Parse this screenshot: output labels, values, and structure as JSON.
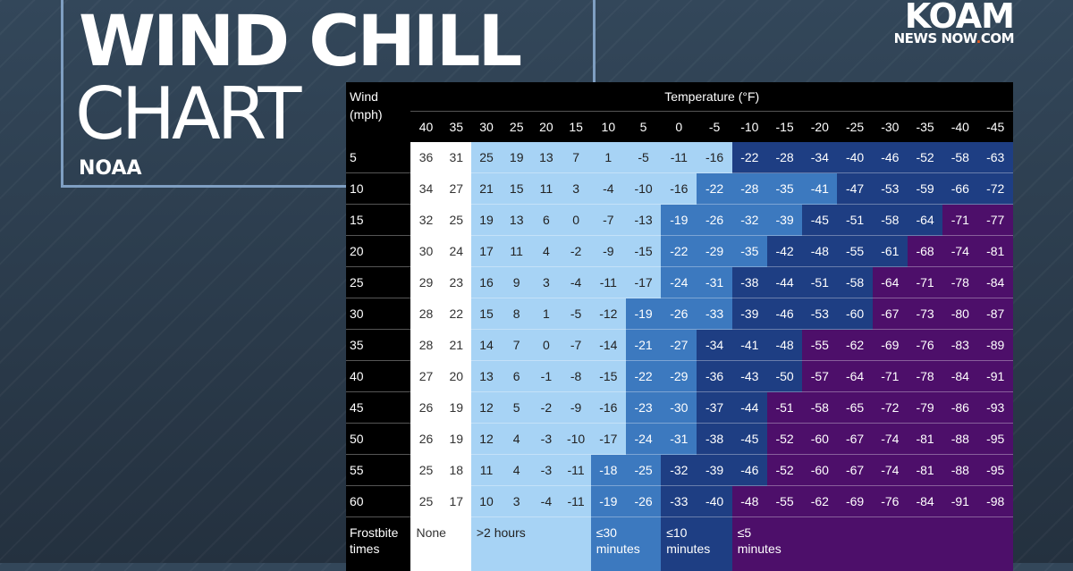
{
  "title": {
    "line1": "WIND CHILL",
    "line2": "CHART",
    "source": "NOAA"
  },
  "logo": {
    "line1": "KOAM",
    "line2_a": "NEWS NOW",
    "line2_dot": ".",
    "line2_b": "COM"
  },
  "table": {
    "corner_label": "Wind\n(mph)",
    "temperature_header": "Temperature (°F)",
    "temperatures": [
      "40",
      "35",
      "30",
      "25",
      "20",
      "15",
      "10",
      "5",
      "0",
      "-5",
      "-10",
      "-15",
      "-20",
      "-25",
      "-30",
      "-35",
      "-40",
      "-45"
    ],
    "rows": [
      {
        "wind": "5",
        "values": [
          "36",
          "31",
          "25",
          "19",
          "13",
          "7",
          "1",
          "-5",
          "-11",
          "-16",
          "-22",
          "-28",
          "-34",
          "-40",
          "-46",
          "-52",
          "-58",
          "-63"
        ],
        "bands": [
          0,
          0,
          1,
          1,
          1,
          1,
          1,
          1,
          1,
          1,
          3,
          3,
          3,
          3,
          3,
          3,
          3,
          3
        ]
      },
      {
        "wind": "10",
        "values": [
          "34",
          "27",
          "21",
          "15",
          "11",
          "3",
          "-4",
          "-10",
          "-16",
          "-22",
          "-28",
          "-35",
          "-41",
          "-47",
          "-53",
          "-59",
          "-66",
          "-72"
        ],
        "bands": [
          0,
          0,
          1,
          1,
          1,
          1,
          1,
          1,
          1,
          2,
          2,
          2,
          2,
          3,
          3,
          3,
          3,
          3
        ]
      },
      {
        "wind": "15",
        "values": [
          "32",
          "25",
          "19",
          "13",
          "6",
          "0",
          "-7",
          "-13",
          "-19",
          "-26",
          "-32",
          "-39",
          "-45",
          "-51",
          "-58",
          "-64",
          "-71",
          "-77"
        ],
        "bands": [
          0,
          0,
          1,
          1,
          1,
          1,
          1,
          1,
          2,
          2,
          2,
          2,
          3,
          3,
          3,
          3,
          4,
          4
        ]
      },
      {
        "wind": "20",
        "values": [
          "30",
          "24",
          "17",
          "11",
          "4",
          "-2",
          "-9",
          "-15",
          "-22",
          "-29",
          "-35",
          "-42",
          "-48",
          "-55",
          "-61",
          "-68",
          "-74",
          "-81"
        ],
        "bands": [
          0,
          0,
          1,
          1,
          1,
          1,
          1,
          1,
          2,
          2,
          2,
          3,
          3,
          3,
          3,
          4,
          4,
          4
        ]
      },
      {
        "wind": "25",
        "values": [
          "29",
          "23",
          "16",
          "9",
          "3",
          "-4",
          "-11",
          "-17",
          "-24",
          "-31",
          "-38",
          "-44",
          "-51",
          "-58",
          "-64",
          "-71",
          "-78",
          "-84"
        ],
        "bands": [
          0,
          0,
          1,
          1,
          1,
          1,
          1,
          1,
          2,
          2,
          3,
          3,
          3,
          3,
          4,
          4,
          4,
          4
        ]
      },
      {
        "wind": "30",
        "values": [
          "28",
          "22",
          "15",
          "8",
          "1",
          "-5",
          "-12",
          "-19",
          "-26",
          "-33",
          "-39",
          "-46",
          "-53",
          "-60",
          "-67",
          "-73",
          "-80",
          "-87"
        ],
        "bands": [
          0,
          0,
          1,
          1,
          1,
          1,
          1,
          2,
          2,
          2,
          3,
          3,
          3,
          3,
          4,
          4,
          4,
          4
        ]
      },
      {
        "wind": "35",
        "values": [
          "28",
          "21",
          "14",
          "7",
          "0",
          "-7",
          "-14",
          "-21",
          "-27",
          "-34",
          "-41",
          "-48",
          "-55",
          "-62",
          "-69",
          "-76",
          "-83",
          "-89"
        ],
        "bands": [
          0,
          0,
          1,
          1,
          1,
          1,
          1,
          2,
          2,
          3,
          3,
          3,
          4,
          4,
          4,
          4,
          4,
          4
        ]
      },
      {
        "wind": "40",
        "values": [
          "27",
          "20",
          "13",
          "6",
          "-1",
          "-8",
          "-15",
          "-22",
          "-29",
          "-36",
          "-43",
          "-50",
          "-57",
          "-64",
          "-71",
          "-78",
          "-84",
          "-91"
        ],
        "bands": [
          0,
          0,
          1,
          1,
          1,
          1,
          1,
          2,
          2,
          3,
          3,
          3,
          4,
          4,
          4,
          4,
          4,
          4
        ]
      },
      {
        "wind": "45",
        "values": [
          "26",
          "19",
          "12",
          "5",
          "-2",
          "-9",
          "-16",
          "-23",
          "-30",
          "-37",
          "-44",
          "-51",
          "-58",
          "-65",
          "-72",
          "-79",
          "-86",
          "-93"
        ],
        "bands": [
          0,
          0,
          1,
          1,
          1,
          1,
          1,
          2,
          2,
          3,
          3,
          4,
          4,
          4,
          4,
          4,
          4,
          4
        ]
      },
      {
        "wind": "50",
        "values": [
          "26",
          "19",
          "12",
          "4",
          "-3",
          "-10",
          "-17",
          "-24",
          "-31",
          "-38",
          "-45",
          "-52",
          "-60",
          "-67",
          "-74",
          "-81",
          "-88",
          "-95"
        ],
        "bands": [
          0,
          0,
          1,
          1,
          1,
          1,
          1,
          2,
          2,
          3,
          3,
          4,
          4,
          4,
          4,
          4,
          4,
          4
        ]
      },
      {
        "wind": "55",
        "values": [
          "25",
          "18",
          "11",
          "4",
          "-3",
          "-11",
          "-18",
          "-25",
          "-32",
          "-39",
          "-46",
          "-52",
          "-60",
          "-67",
          "-74",
          "-81",
          "-88",
          "-95"
        ],
        "bands": [
          0,
          0,
          1,
          1,
          1,
          1,
          2,
          2,
          3,
          3,
          3,
          4,
          4,
          4,
          4,
          4,
          4,
          4
        ]
      },
      {
        "wind": "60",
        "values": [
          "25",
          "17",
          "10",
          "3",
          "-4",
          "-11",
          "-19",
          "-26",
          "-33",
          "-40",
          "-48",
          "-55",
          "-62",
          "-69",
          "-76",
          "-84",
          "-91",
          "-98"
        ],
        "bands": [
          0,
          0,
          1,
          1,
          1,
          1,
          2,
          2,
          3,
          3,
          4,
          4,
          4,
          4,
          4,
          4,
          4,
          4
        ]
      }
    ],
    "frostbite": {
      "label": "Frostbite\ntimes",
      "segments": [
        {
          "text": "None",
          "band": 0,
          "span": 2
        },
        {
          "text": ">2 hours",
          "band": 1,
          "span": 4
        },
        {
          "text": "≤30\nminutes",
          "band": 2,
          "span": 2
        },
        {
          "text": "≤10\nminutes",
          "band": 3,
          "span": 2
        },
        {
          "text": "≤5\nminutes",
          "band": 4,
          "span": 8
        }
      ]
    },
    "band_colors": [
      "#ffffff",
      "#a7d3f5",
      "#3c79bf",
      "#1e3e83",
      "#4d0f6a"
    ]
  }
}
